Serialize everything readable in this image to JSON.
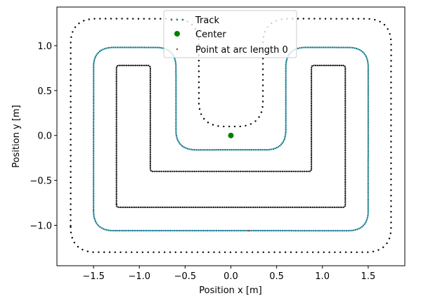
{
  "chart_data": {
    "type": "scatter",
    "xlabel": "Position x [m]",
    "ylabel": "Position y [m]",
    "xlim": [
      -1.9,
      1.9
    ],
    "ylim": [
      -1.45,
      1.43
    ],
    "x_ticks": [
      -1.5,
      -1.0,
      -0.5,
      0.0,
      0.5,
      1.0,
      1.5
    ],
    "x_tick_labels": [
      "−1.5",
      "−1.0",
      "−0.5",
      "0.0",
      "0.5",
      "1.0",
      "1.5"
    ],
    "y_ticks": [
      -1.0,
      -0.5,
      0.0,
      0.5,
      1.0
    ],
    "y_tick_labels": [
      "−1.0",
      "−0.5",
      "0.0",
      "0.5",
      "1.0"
    ],
    "grid": false,
    "legend_position": "top-center",
    "legend": [
      {
        "label": "Track",
        "marker": "dotted-line",
        "color": "#1f77b4"
      },
      {
        "label": "Center",
        "marker": "circle",
        "color": "#008000"
      },
      {
        "label": "Point at arc length 0",
        "marker": "small-dot",
        "color": "#d62728"
      }
    ],
    "centerline": {
      "name": "Track",
      "color": "#1f77b4",
      "shape": "rounded U loop",
      "vertices": [
        [
          -1.5,
          -1.06
        ],
        [
          1.5,
          -1.06
        ],
        [
          1.5,
          0.98
        ],
        [
          0.6,
          0.98
        ],
        [
          0.6,
          -0.16
        ],
        [
          -0.6,
          -0.16
        ],
        [
          -0.6,
          0.98
        ],
        [
          -1.5,
          0.98
        ]
      ],
      "corner_radius": 0.22
    },
    "outer_boundary": {
      "color": "#000000",
      "vertices": [
        [
          -1.75,
          -1.3
        ],
        [
          1.75,
          -1.3
        ],
        [
          1.75,
          1.3
        ],
        [
          0.35,
          1.3
        ],
        [
          0.35,
          0.1
        ],
        [
          -0.35,
          0.1
        ],
        [
          -0.35,
          1.3
        ],
        [
          -1.75,
          1.3
        ]
      ],
      "corner_radius": 0.28
    },
    "inner_boundary": {
      "color": "#000000",
      "pieces": [
        {
          "vertices": [
            [
              -1.25,
              -0.8
            ],
            [
              1.25,
              -0.8
            ],
            [
              1.25,
              0.78
            ],
            [
              0.88,
              0.78
            ],
            [
              0.88,
              -0.4
            ],
            [
              -0.88,
              -0.4
            ],
            [
              -0.88,
              0.78
            ],
            [
              -1.25,
              0.78
            ]
          ],
          "corner_radius": 0.03
        }
      ]
    },
    "center_point": {
      "name": "Center",
      "x": 0.0,
      "y": 0.0,
      "color": "#008000"
    },
    "start_point": {
      "name": "Point at arc length 0",
      "x": 0.2,
      "y": -1.06,
      "color": "#d62728"
    }
  }
}
